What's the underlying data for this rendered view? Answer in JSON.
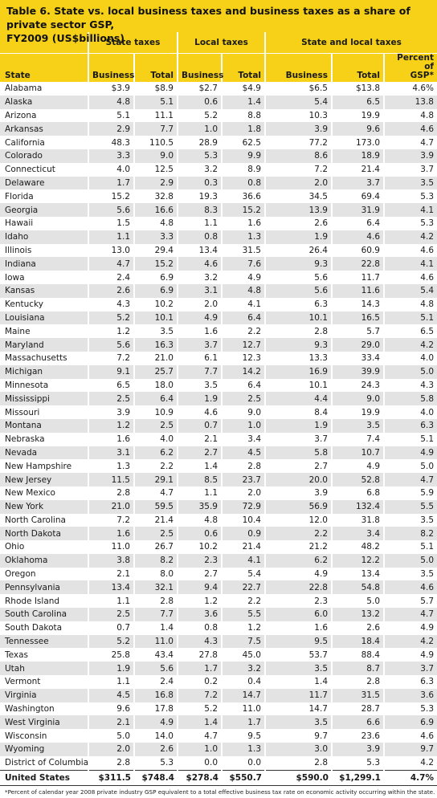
{
  "title_line1": "Table 6. State vs. local business taxes and business taxes as a share of private sector GSP,",
  "title_line2": "FY2009 (US$billions)",
  "groups": {
    "state_taxes": "State taxes",
    "local_taxes": "Local taxes",
    "state_and_local": "State and local taxes"
  },
  "columns": {
    "state": "State",
    "business": "Business",
    "total": "Total",
    "percent_l1": "Percent of",
    "percent_l2": "GSP*"
  },
  "rows": [
    [
      "Alabama",
      "$3.9",
      "$8.9",
      "$2.7",
      "$4.9",
      "$6.5",
      "$13.8",
      "4.6%"
    ],
    [
      "Alaska",
      "4.8",
      "5.1",
      "0.6",
      "1.4",
      "5.4",
      "6.5",
      "13.8"
    ],
    [
      "Arizona",
      "5.1",
      "11.1",
      "5.2",
      "8.8",
      "10.3",
      "19.9",
      "4.8"
    ],
    [
      "Arkansas",
      "2.9",
      "7.7",
      "1.0",
      "1.8",
      "3.9",
      "9.6",
      "4.6"
    ],
    [
      "California",
      "48.3",
      "110.5",
      "28.9",
      "62.5",
      "77.2",
      "173.0",
      "4.7"
    ],
    [
      "Colorado",
      "3.3",
      "9.0",
      "5.3",
      "9.9",
      "8.6",
      "18.9",
      "3.9"
    ],
    [
      "Connecticut",
      "4.0",
      "12.5",
      "3.2",
      "8.9",
      "7.2",
      "21.4",
      "3.7"
    ],
    [
      "Delaware",
      "1.7",
      "2.9",
      "0.3",
      "0.8",
      "2.0",
      "3.7",
      "3.5"
    ],
    [
      "Florida",
      "15.2",
      "32.8",
      "19.3",
      "36.6",
      "34.5",
      "69.4",
      "5.3"
    ],
    [
      "Georgia",
      "5.6",
      "16.6",
      "8.3",
      "15.2",
      "13.9",
      "31.9",
      "4.1"
    ],
    [
      "Hawaii",
      "1.5",
      "4.8",
      "1.1",
      "1.6",
      "2.6",
      "6.4",
      "5.3"
    ],
    [
      "Idaho",
      "1.1",
      "3.3",
      "0.8",
      "1.3",
      "1.9",
      "4.6",
      "4.2"
    ],
    [
      "Illinois",
      "13.0",
      "29.4",
      "13.4",
      "31.5",
      "26.4",
      "60.9",
      "4.6"
    ],
    [
      "Indiana",
      "4.7",
      "15.2",
      "4.6",
      "7.6",
      "9.3",
      "22.8",
      "4.1"
    ],
    [
      "Iowa",
      "2.4",
      "6.9",
      "3.2",
      "4.9",
      "5.6",
      "11.7",
      "4.6"
    ],
    [
      "Kansas",
      "2.6",
      "6.9",
      "3.1",
      "4.8",
      "5.6",
      "11.6",
      "5.4"
    ],
    [
      "Kentucky",
      "4.3",
      "10.2",
      "2.0",
      "4.1",
      "6.3",
      "14.3",
      "4.8"
    ],
    [
      "Louisiana",
      "5.2",
      "10.1",
      "4.9",
      "6.4",
      "10.1",
      "16.5",
      "5.1"
    ],
    [
      "Maine",
      "1.2",
      "3.5",
      "1.6",
      "2.2",
      "2.8",
      "5.7",
      "6.5"
    ],
    [
      "Maryland",
      "5.6",
      "16.3",
      "3.7",
      "12.7",
      "9.3",
      "29.0",
      "4.2"
    ],
    [
      "Massachusetts",
      "7.2",
      "21.0",
      "6.1",
      "12.3",
      "13.3",
      "33.4",
      "4.0"
    ],
    [
      "Michigan",
      "9.1",
      "25.7",
      "7.7",
      "14.2",
      "16.9",
      "39.9",
      "5.0"
    ],
    [
      "Minnesota",
      "6.5",
      "18.0",
      "3.5",
      "6.4",
      "10.1",
      "24.3",
      "4.3"
    ],
    [
      "Mississippi",
      "2.5",
      "6.4",
      "1.9",
      "2.5",
      "4.4",
      "9.0",
      "5.8"
    ],
    [
      "Missouri",
      "3.9",
      "10.9",
      "4.6",
      "9.0",
      "8.4",
      "19.9",
      "4.0"
    ],
    [
      "Montana",
      "1.2",
      "2.5",
      "0.7",
      "1.0",
      "1.9",
      "3.5",
      "6.3"
    ],
    [
      "Nebraska",
      "1.6",
      "4.0",
      "2.1",
      "3.4",
      "3.7",
      "7.4",
      "5.1"
    ],
    [
      "Nevada",
      "3.1",
      "6.2",
      "2.7",
      "4.5",
      "5.8",
      "10.7",
      "4.9"
    ],
    [
      "New Hampshire",
      "1.3",
      "2.2",
      "1.4",
      "2.8",
      "2.7",
      "4.9",
      "5.0"
    ],
    [
      "New Jersey",
      "11.5",
      "29.1",
      "8.5",
      "23.7",
      "20.0",
      "52.8",
      "4.7"
    ],
    [
      "New Mexico",
      "2.8",
      "4.7",
      "1.1",
      "2.0",
      "3.9",
      "6.8",
      "5.9"
    ],
    [
      "New York",
      "21.0",
      "59.5",
      "35.9",
      "72.9",
      "56.9",
      "132.4",
      "5.5"
    ],
    [
      "North Carolina",
      "7.2",
      "21.4",
      "4.8",
      "10.4",
      "12.0",
      "31.8",
      "3.5"
    ],
    [
      "North Dakota",
      "1.6",
      "2.5",
      "0.6",
      "0.9",
      "2.2",
      "3.4",
      "8.2"
    ],
    [
      "Ohio",
      "11.0",
      "26.7",
      "10.2",
      "21.4",
      "21.2",
      "48.2",
      "5.1"
    ],
    [
      "Oklahoma",
      "3.8",
      "8.2",
      "2.3",
      "4.1",
      "6.2",
      "12.2",
      "5.0"
    ],
    [
      "Oregon",
      "2.1",
      "8.0",
      "2.7",
      "5.4",
      "4.9",
      "13.4",
      "3.5"
    ],
    [
      "Pennsylvania",
      "13.4",
      "32.1",
      "9.4",
      "22.7",
      "22.8",
      "54.8",
      "4.6"
    ],
    [
      "Rhode Island",
      "1.1",
      "2.8",
      "1.2",
      "2.2",
      "2.3",
      "5.0",
      "5.7"
    ],
    [
      "South Carolina",
      "2.5",
      "7.7",
      "3.6",
      "5.5",
      "6.0",
      "13.2",
      "4.7"
    ],
    [
      "South Dakota",
      "0.7",
      "1.4",
      "0.8",
      "1.2",
      "1.6",
      "2.6",
      "4.9"
    ],
    [
      "Tennessee",
      "5.2",
      "11.0",
      "4.3",
      "7.5",
      "9.5",
      "18.4",
      "4.2"
    ],
    [
      "Texas",
      "25.8",
      "43.4",
      "27.8",
      "45.0",
      "53.7",
      "88.4",
      "4.9"
    ],
    [
      "Utah",
      "1.9",
      "5.6",
      "1.7",
      "3.2",
      "3.5",
      "8.7",
      "3.7"
    ],
    [
      "Vermont",
      "1.1",
      "2.4",
      "0.2",
      "0.4",
      "1.4",
      "2.8",
      "6.3"
    ],
    [
      "Virginia",
      "4.5",
      "16.8",
      "7.2",
      "14.7",
      "11.7",
      "31.5",
      "3.6"
    ],
    [
      "Washington",
      "9.6",
      "17.8",
      "5.2",
      "11.0",
      "14.7",
      "28.7",
      "5.3"
    ],
    [
      "West Virginia",
      "2.1",
      "4.9",
      "1.4",
      "1.7",
      "3.5",
      "6.6",
      "6.9"
    ],
    [
      "Wisconsin",
      "5.0",
      "14.0",
      "4.7",
      "9.5",
      "9.7",
      "23.6",
      "4.6"
    ],
    [
      "Wyoming",
      "2.0",
      "2.6",
      "1.0",
      "1.3",
      "3.0",
      "3.9",
      "9.7"
    ],
    [
      "District of Columbia",
      "2.8",
      "5.3",
      "0.0",
      "0.0",
      "2.8",
      "5.3",
      "4.2"
    ]
  ],
  "total_row": [
    "United States",
    "$311.5",
    "$748.4",
    "$278.4",
    "$550.7",
    "$590.0",
    "$1,299.1",
    "4.7%"
  ],
  "footnote": "*Percent of calendar year 2008 private industry GSP equivalent to a total effective business tax rate on economic activity occurring within the state.",
  "colors": {
    "accent_yellow": "#f7d117",
    "stripe_gray": "#e3e3e3"
  }
}
